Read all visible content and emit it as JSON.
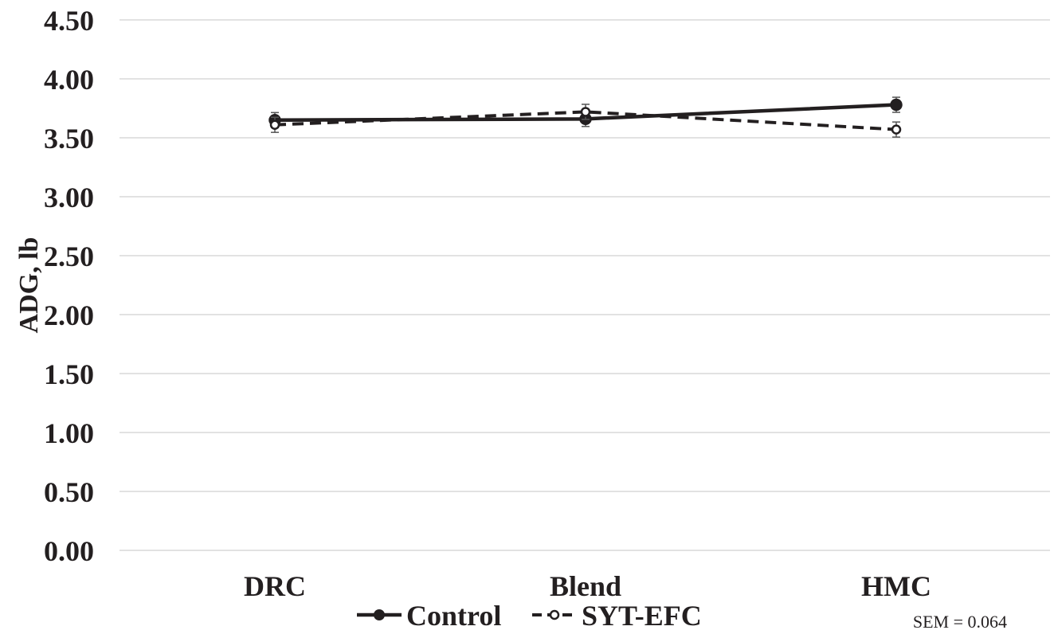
{
  "chart_data": {
    "type": "line",
    "categories": [
      "DRC",
      "Blend",
      "HMC"
    ],
    "series": [
      {
        "name": "Control",
        "values": [
          3.65,
          3.66,
          3.78
        ],
        "error": [
          0.064,
          0.064,
          0.064
        ],
        "style": "solid",
        "marker": "filled-circle",
        "color": "#231f20"
      },
      {
        "name": "SYT-EFC",
        "values": [
          3.61,
          3.72,
          3.57
        ],
        "error": [
          0.064,
          0.064,
          0.064
        ],
        "style": "dashed",
        "marker": "open-circle",
        "color": "#231f20"
      }
    ],
    "yticks": [
      "0.00",
      "0.50",
      "1.00",
      "1.50",
      "2.00",
      "2.50",
      "3.00",
      "3.50",
      "4.00",
      "4.50"
    ],
    "ylim": [
      0,
      4.5
    ],
    "ylabel": "ADG, lb",
    "xlabel": "",
    "title": "",
    "grid": "horizontal",
    "legend_position": "bottom-center",
    "annotation": "SEM = 0.064"
  }
}
